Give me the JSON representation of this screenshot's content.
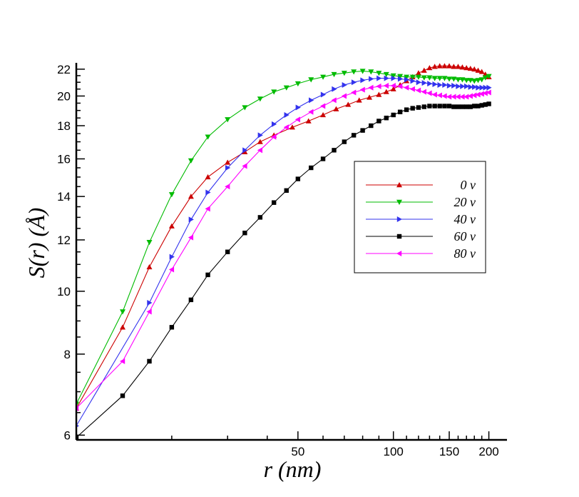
{
  "chart_data": {
    "type": "line",
    "title": "",
    "xlabel": "r  (nm)",
    "ylabel": "S(r)   (Å)",
    "x_scale": "log",
    "y_scale": "log",
    "xlim": [
      10,
      210
    ],
    "ylim": [
      5.9,
      22.5
    ],
    "x_ticks": [
      {
        "value": 50,
        "label": "50"
      },
      {
        "value": 100,
        "label": "100"
      },
      {
        "value": 150,
        "label": "150"
      },
      {
        "value": 200,
        "label": "200"
      }
    ],
    "y_ticks": [
      {
        "value": 6,
        "label": "6"
      },
      {
        "value": 8,
        "label": "8"
      },
      {
        "value": 10,
        "label": "10"
      },
      {
        "value": 12,
        "label": "12"
      },
      {
        "value": 14,
        "label": "14"
      },
      {
        "value": 16,
        "label": "16"
      },
      {
        "value": 18,
        "label": "18"
      },
      {
        "value": 20,
        "label": "20"
      },
      {
        "value": 22,
        "label": "22"
      }
    ],
    "grid": false,
    "legend_position": "right-middle",
    "series": [
      {
        "name": "0  v",
        "color": "#cc0000",
        "marker": "triangle-up",
        "points": [
          [
            10,
            6.6
          ],
          [
            14,
            8.8
          ],
          [
            17,
            10.9
          ],
          [
            20,
            12.6
          ],
          [
            23,
            14.0
          ],
          [
            26,
            15.0
          ],
          [
            30,
            15.8
          ],
          [
            34,
            16.4
          ],
          [
            38,
            17.0
          ],
          [
            42,
            17.4
          ],
          [
            48,
            17.9
          ],
          [
            54,
            18.3
          ],
          [
            60,
            18.7
          ],
          [
            66,
            19.1
          ],
          [
            72,
            19.4
          ],
          [
            78,
            19.7
          ],
          [
            84,
            19.9
          ],
          [
            90,
            20.1
          ],
          [
            95,
            20.3
          ],
          [
            100,
            20.5
          ],
          [
            105,
            20.8
          ],
          [
            110,
            21.1
          ],
          [
            115,
            21.4
          ],
          [
            120,
            21.7
          ],
          [
            125,
            21.9
          ],
          [
            130,
            22.1
          ],
          [
            135,
            22.2
          ],
          [
            140,
            22.25
          ],
          [
            145,
            22.25
          ],
          [
            150,
            22.25
          ],
          [
            155,
            22.2
          ],
          [
            160,
            22.2
          ],
          [
            165,
            22.15
          ],
          [
            170,
            22.1
          ],
          [
            175,
            22.05
          ],
          [
            180,
            22.0
          ],
          [
            185,
            21.9
          ],
          [
            190,
            21.8
          ],
          [
            195,
            21.6
          ],
          [
            200,
            21.4
          ]
        ]
      },
      {
        "name": "20  v",
        "color": "#00bb00",
        "marker": "triangle-down",
        "points": [
          [
            10,
            6.7
          ],
          [
            14,
            9.3
          ],
          [
            17,
            11.9
          ],
          [
            20,
            14.1
          ],
          [
            23,
            15.9
          ],
          [
            26,
            17.3
          ],
          [
            30,
            18.4
          ],
          [
            34,
            19.2
          ],
          [
            38,
            19.8
          ],
          [
            42,
            20.3
          ],
          [
            46,
            20.6
          ],
          [
            50,
            20.9
          ],
          [
            55,
            21.2
          ],
          [
            60,
            21.4
          ],
          [
            65,
            21.6
          ],
          [
            70,
            21.7
          ],
          [
            75,
            21.8
          ],
          [
            80,
            21.85
          ],
          [
            85,
            21.8
          ],
          [
            90,
            21.7
          ],
          [
            95,
            21.6
          ],
          [
            100,
            21.5
          ],
          [
            105,
            21.45
          ],
          [
            110,
            21.4
          ],
          [
            115,
            21.4
          ],
          [
            120,
            21.4
          ],
          [
            125,
            21.35
          ],
          [
            130,
            21.35
          ],
          [
            135,
            21.3
          ],
          [
            140,
            21.3
          ],
          [
            145,
            21.3
          ],
          [
            150,
            21.25
          ],
          [
            155,
            21.25
          ],
          [
            160,
            21.2
          ],
          [
            165,
            21.2
          ],
          [
            170,
            21.15
          ],
          [
            175,
            21.15
          ],
          [
            180,
            21.1
          ],
          [
            185,
            21.15
          ],
          [
            190,
            21.2
          ],
          [
            195,
            21.35
          ],
          [
            200,
            21.45
          ]
        ]
      },
      {
        "name": "40  v",
        "color": "#3333ee",
        "marker": "triangle-right",
        "points": [
          [
            10,
            6.2
          ],
          [
            17,
            9.6
          ],
          [
            20,
            11.3
          ],
          [
            23,
            12.9
          ],
          [
            26,
            14.2
          ],
          [
            30,
            15.5
          ],
          [
            34,
            16.5
          ],
          [
            38,
            17.4
          ],
          [
            42,
            18.1
          ],
          [
            46,
            18.7
          ],
          [
            50,
            19.2
          ],
          [
            55,
            19.7
          ],
          [
            60,
            20.1
          ],
          [
            65,
            20.5
          ],
          [
            70,
            20.8
          ],
          [
            75,
            21.0
          ],
          [
            80,
            21.15
          ],
          [
            85,
            21.25
          ],
          [
            90,
            21.3
          ],
          [
            95,
            21.3
          ],
          [
            100,
            21.3
          ],
          [
            105,
            21.25
          ],
          [
            110,
            21.2
          ],
          [
            115,
            21.1
          ],
          [
            120,
            21.0
          ],
          [
            125,
            20.95
          ],
          [
            130,
            20.9
          ],
          [
            135,
            20.85
          ],
          [
            140,
            20.8
          ],
          [
            145,
            20.8
          ],
          [
            150,
            20.75
          ],
          [
            155,
            20.75
          ],
          [
            160,
            20.7
          ],
          [
            165,
            20.7
          ],
          [
            170,
            20.7
          ],
          [
            175,
            20.65
          ],
          [
            180,
            20.65
          ],
          [
            185,
            20.6
          ],
          [
            190,
            20.6
          ],
          [
            195,
            20.6
          ],
          [
            200,
            20.6
          ]
        ]
      },
      {
        "name": "60  v",
        "color": "#000000",
        "marker": "square",
        "points": [
          [
            10,
            5.95
          ],
          [
            14,
            6.9
          ],
          [
            17,
            7.8
          ],
          [
            20,
            8.8
          ],
          [
            23,
            9.7
          ],
          [
            26,
            10.6
          ],
          [
            30,
            11.5
          ],
          [
            34,
            12.3
          ],
          [
            38,
            13.0
          ],
          [
            42,
            13.7
          ],
          [
            46,
            14.3
          ],
          [
            50,
            14.9
          ],
          [
            55,
            15.5
          ],
          [
            60,
            16.0
          ],
          [
            65,
            16.5
          ],
          [
            70,
            17.0
          ],
          [
            75,
            17.4
          ],
          [
            80,
            17.7
          ],
          [
            85,
            18.0
          ],
          [
            90,
            18.3
          ],
          [
            95,
            18.5
          ],
          [
            100,
            18.7
          ],
          [
            105,
            18.9
          ],
          [
            110,
            19.05
          ],
          [
            115,
            19.15
          ],
          [
            120,
            19.2
          ],
          [
            125,
            19.25
          ],
          [
            130,
            19.3
          ],
          [
            135,
            19.3
          ],
          [
            140,
            19.3
          ],
          [
            145,
            19.3
          ],
          [
            150,
            19.3
          ],
          [
            155,
            19.25
          ],
          [
            160,
            19.25
          ],
          [
            165,
            19.25
          ],
          [
            170,
            19.25
          ],
          [
            175,
            19.25
          ],
          [
            180,
            19.3
          ],
          [
            185,
            19.3
          ],
          [
            190,
            19.35
          ],
          [
            195,
            19.4
          ],
          [
            200,
            19.45
          ]
        ]
      },
      {
        "name": "80  v",
        "color": "#ff00ff",
        "marker": "triangle-left",
        "points": [
          [
            10,
            6.6
          ],
          [
            14,
            7.8
          ],
          [
            17,
            9.3
          ],
          [
            20,
            10.8
          ],
          [
            23,
            12.1
          ],
          [
            26,
            13.4
          ],
          [
            30,
            14.5
          ],
          [
            34,
            15.6
          ],
          [
            38,
            16.5
          ],
          [
            42,
            17.3
          ],
          [
            46,
            17.9
          ],
          [
            50,
            18.4
          ],
          [
            55,
            18.9
          ],
          [
            60,
            19.3
          ],
          [
            65,
            19.7
          ],
          [
            70,
            20.0
          ],
          [
            75,
            20.25
          ],
          [
            80,
            20.45
          ],
          [
            85,
            20.6
          ],
          [
            90,
            20.7
          ],
          [
            95,
            20.75
          ],
          [
            100,
            20.75
          ],
          [
            105,
            20.7
          ],
          [
            110,
            20.6
          ],
          [
            115,
            20.5
          ],
          [
            120,
            20.4
          ],
          [
            125,
            20.3
          ],
          [
            130,
            20.2
          ],
          [
            135,
            20.1
          ],
          [
            140,
            20.05
          ],
          [
            145,
            20.0
          ],
          [
            150,
            19.95
          ],
          [
            155,
            19.95
          ],
          [
            160,
            19.95
          ],
          [
            165,
            19.95
          ],
          [
            170,
            19.95
          ],
          [
            175,
            20.0
          ],
          [
            180,
            20.05
          ],
          [
            185,
            20.1
          ],
          [
            190,
            20.15
          ],
          [
            195,
            20.2
          ],
          [
            200,
            20.25
          ]
        ]
      }
    ]
  }
}
